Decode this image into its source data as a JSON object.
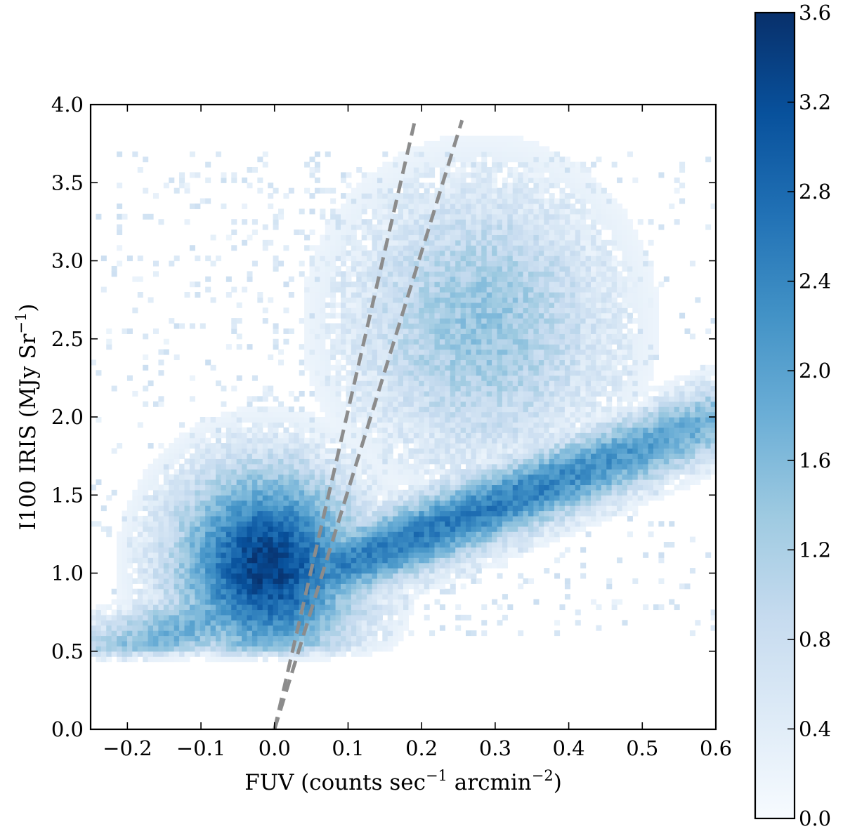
{
  "chart_data": {
    "type": "heatmap",
    "title": "",
    "xlabel": {
      "text": "FUV (counts sec",
      "sup1": "−1",
      "mid": " arcmin",
      "sup2": "−2",
      "tail": ")"
    },
    "ylabel": {
      "text": "I100 IRIS (MJy Sr",
      "sup": "−1",
      "tail": ")"
    },
    "xlim": [
      -0.25,
      0.6
    ],
    "ylim": [
      0.0,
      4.0
    ],
    "xticks": [
      "−0.2",
      "−0.1",
      "0.0",
      "0.1",
      "0.2",
      "0.3",
      "0.4",
      "0.5",
      "0.6"
    ],
    "xtick_values": [
      -0.2,
      -0.1,
      0.0,
      0.1,
      0.2,
      0.3,
      0.4,
      0.5,
      0.6
    ],
    "yticks": [
      "0.0",
      "0.5",
      "1.0",
      "1.5",
      "2.0",
      "2.5",
      "3.0",
      "3.5",
      "4.0"
    ],
    "ytick_values": [
      0.0,
      0.5,
      1.0,
      1.5,
      2.0,
      2.5,
      3.0,
      3.5,
      4.0
    ],
    "colormap": "Blues",
    "colors": {
      "low": "#f7fbff",
      "mid": "#6baed6",
      "high": "#08306b",
      "line": "#8c8c8c"
    },
    "colorbar": {
      "range": [
        0.0,
        3.6
      ],
      "ticks": [
        "0.0",
        "0.4",
        "0.8",
        "1.2",
        "1.6",
        "2.0",
        "2.4",
        "2.8",
        "3.2",
        "3.6"
      ],
      "tick_values": [
        0.0,
        0.4,
        0.8,
        1.2,
        1.6,
        2.0,
        2.4,
        2.8,
        3.2,
        3.6
      ]
    },
    "density_peak": {
      "fuv": -0.01,
      "i100": 1.0,
      "value": 3.6
    },
    "lines": [
      {
        "style": "dashed",
        "x": [
          0.0,
          0.19
        ],
        "y": [
          0.0,
          3.88
        ]
      },
      {
        "style": "dashed",
        "x": [
          0.0,
          0.255
        ],
        "y": [
          0.0,
          3.9
        ]
      }
    ]
  }
}
